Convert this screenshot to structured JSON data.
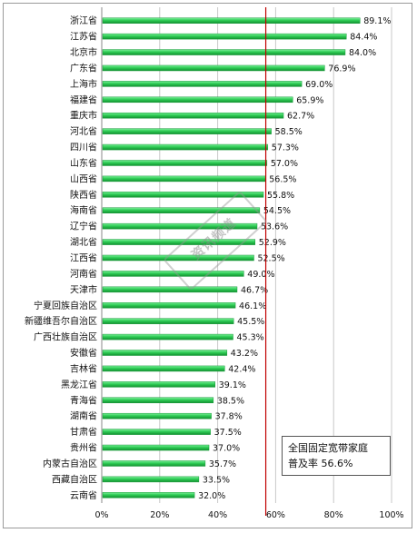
{
  "chart_data": {
    "type": "bar",
    "orientation": "horizontal",
    "categories": [
      "浙江省",
      "江苏省",
      "北京市",
      "广东省",
      "上海市",
      "福建省",
      "重庆市",
      "河北省",
      "四川省",
      "山东省",
      "山西省",
      "陕西省",
      "海南省",
      "辽宁省",
      "湖北省",
      "江西省",
      "河南省",
      "天津市",
      "宁夏回族自治区",
      "新疆维吾尔自治区",
      "广西壮族自治区",
      "安徽省",
      "吉林省",
      "黑龙江省",
      "青海省",
      "湖南省",
      "甘肃省",
      "贵州省",
      "内蒙古自治区",
      "西藏自治区",
      "云南省"
    ],
    "values": [
      89.1,
      84.4,
      84.0,
      76.9,
      69.0,
      65.9,
      62.7,
      58.5,
      57.3,
      57.0,
      56.5,
      55.8,
      54.5,
      53.6,
      52.9,
      52.5,
      49.0,
      46.7,
      46.1,
      45.5,
      45.3,
      43.2,
      42.4,
      39.1,
      38.5,
      37.8,
      37.5,
      37.0,
      35.7,
      33.5,
      32.0
    ],
    "value_labels": [
      "89.1%",
      "84.4%",
      "84.0%",
      "76.9%",
      "69.0%",
      "65.9%",
      "62.7%",
      "58.5%",
      "57.3%",
      "57.0%",
      "56.5%",
      "55.8%",
      "54.5%",
      "53.6%",
      "52.9%",
      "52.5%",
      "49.0%",
      "46.7%",
      "46.1%",
      "45.5%",
      "45.3%",
      "43.2%",
      "42.4%",
      "39.1%",
      "38.5%",
      "37.8%",
      "37.5%",
      "37.0%",
      "35.7%",
      "33.5%",
      "32.0%"
    ],
    "xlim": [
      0,
      100
    ],
    "xticks": [
      "0%",
      "20%",
      "40%",
      "60%",
      "80%",
      "100%"
    ],
    "reference_value": 56.6,
    "grid": true,
    "bar_color": "#2ecc55",
    "reference_line_color": "#c00000"
  },
  "annotation": {
    "line1": "全国固定宽带家庭",
    "line2": "普及率 56.6%"
  },
  "watermark": "资讯频道"
}
